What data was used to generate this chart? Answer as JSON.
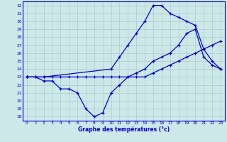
{
  "title": "Graphe des températures (°c)",
  "background_color": "#cce8e8",
  "grid_color": "#aacccc",
  "line_color": "#0000cc",
  "xlim": [
    -0.5,
    23.5
  ],
  "ylim": [
    17.5,
    32.5
  ],
  "xticks": [
    0,
    1,
    2,
    3,
    4,
    5,
    6,
    7,
    8,
    9,
    10,
    11,
    12,
    13,
    14,
    15,
    16,
    17,
    18,
    19,
    20,
    21,
    22,
    23
  ],
  "yticks": [
    18,
    19,
    20,
    21,
    22,
    23,
    24,
    25,
    26,
    27,
    28,
    29,
    30,
    31,
    32
  ],
  "line1_x": [
    0,
    1,
    2,
    3,
    4,
    5,
    6,
    7,
    8,
    9,
    10,
    11,
    12,
    13,
    14,
    15,
    16,
    17,
    18,
    19,
    20,
    21,
    22,
    23
  ],
  "line1_y": [
    23,
    23,
    22.5,
    22.5,
    21.5,
    21.5,
    21,
    19,
    18,
    18.5,
    21,
    22,
    23,
    23.5,
    24,
    25,
    25.5,
    26,
    27,
    28.5,
    29,
    25.5,
    24.5,
    24
  ],
  "line2_x": [
    0,
    1,
    2,
    3,
    4,
    5,
    6,
    7,
    8,
    9,
    10,
    11,
    12,
    13,
    14,
    15,
    16,
    17,
    18,
    19,
    20,
    21,
    22,
    23
  ],
  "line2_y": [
    23,
    23,
    23,
    23,
    23,
    23,
    23,
    23,
    23,
    23,
    23,
    23,
    23,
    23,
    23,
    23.5,
    24,
    24.5,
    25,
    25.5,
    26,
    26.5,
    27,
    27.5
  ],
  "line3_x": [
    0,
    2,
    10,
    11,
    12,
    13,
    14,
    15,
    16,
    17,
    18,
    19,
    20,
    21,
    22,
    23
  ],
  "line3_y": [
    23,
    23,
    24,
    25.5,
    27,
    28.5,
    30,
    32,
    32,
    31,
    30.5,
    30,
    29.5,
    26.5,
    25,
    24
  ]
}
